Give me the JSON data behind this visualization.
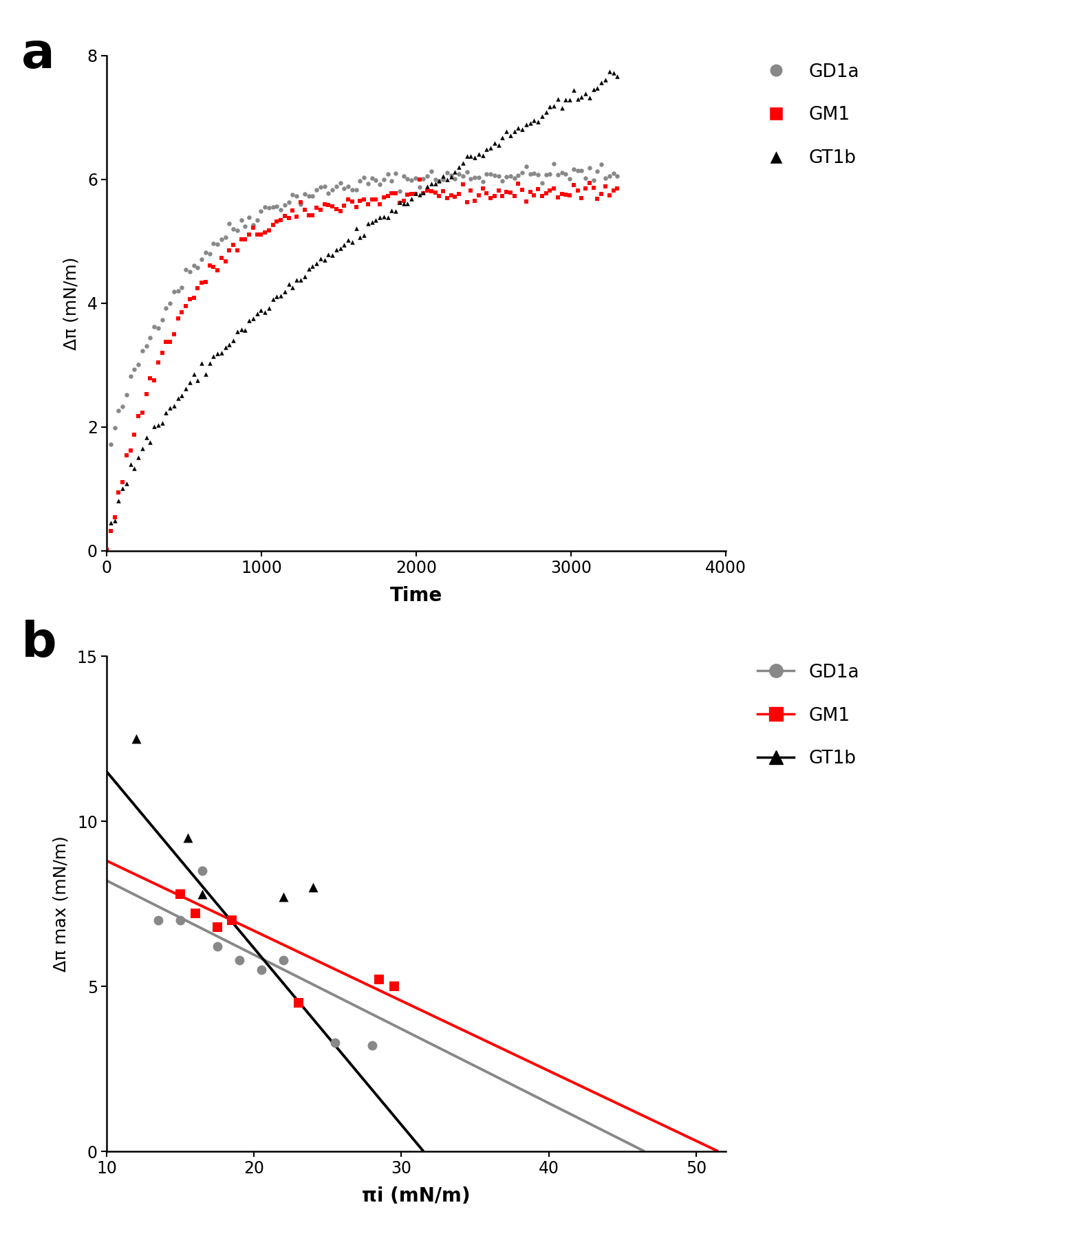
{
  "panel_a": {
    "xlabel": "Time",
    "ylabel": "Δπ (mN/m)",
    "xlim": [
      0,
      4000
    ],
    "ylim": [
      0,
      8
    ],
    "xticks": [
      0,
      1000,
      2000,
      3000,
      4000
    ],
    "yticks": [
      0,
      2,
      4,
      6,
      8
    ]
  },
  "panel_b": {
    "xlabel": "πi (mN/m)",
    "ylabel": "Δπ max (mN/m)",
    "xlim": [
      10,
      52
    ],
    "ylim": [
      0,
      15
    ],
    "xticks": [
      10,
      20,
      30,
      40,
      50
    ],
    "yticks": [
      0,
      5,
      10,
      15
    ],
    "gd1a_x": [
      13.5,
      15.0,
      16.5,
      17.5,
      19.0,
      20.5,
      22.0,
      25.5,
      28.0
    ],
    "gd1a_y": [
      7.0,
      7.0,
      8.5,
      6.2,
      5.8,
      5.5,
      5.8,
      3.3,
      3.2
    ],
    "gm1_x": [
      15.0,
      16.0,
      17.5,
      18.5,
      23.0,
      28.5,
      29.5
    ],
    "gm1_y": [
      7.8,
      7.2,
      6.8,
      7.0,
      4.5,
      5.2,
      5.0
    ],
    "gt1b_x": [
      12.0,
      15.5,
      16.5,
      22.0,
      24.0
    ],
    "gt1b_y": [
      12.5,
      9.5,
      7.8,
      7.7,
      8.0
    ],
    "gd1a_line_x": [
      10,
      46.5
    ],
    "gd1a_line_y": [
      8.2,
      0.0
    ],
    "gm1_line_x": [
      10,
      51.5
    ],
    "gm1_line_y": [
      8.8,
      0.0
    ],
    "gt1b_line_x": [
      10,
      31.5
    ],
    "gt1b_line_y": [
      11.5,
      0.0
    ]
  },
  "gd1a_color": "#888888",
  "gm1_color": "#FF0000",
  "gt1b_color": "#000000",
  "label_a": "a",
  "label_b": "b",
  "legend_a": [
    "GD1a",
    "GM1",
    "GT1b"
  ],
  "legend_b": [
    "GD1a",
    "GM1",
    "GT1b"
  ]
}
